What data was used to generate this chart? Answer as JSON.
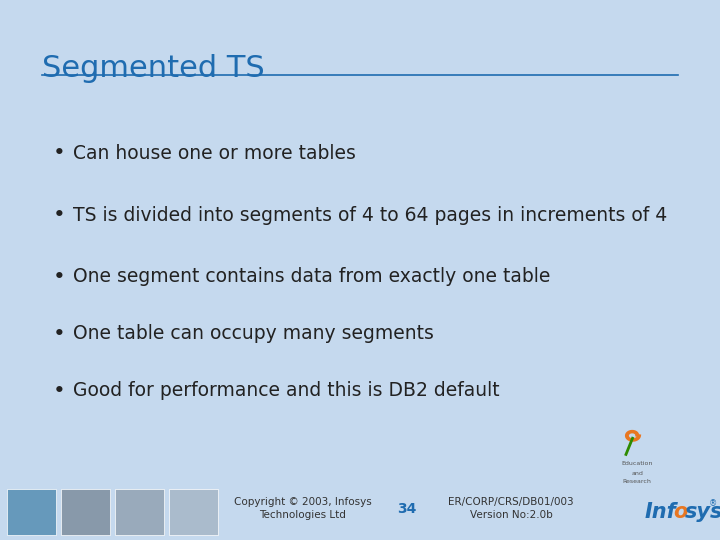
{
  "title": "Segmented TS",
  "title_color": "#1F6CB0",
  "title_fontsize": 22,
  "bg_color": "#DDE9F5",
  "slide_bg": "#C5D9EE",
  "content_bg": "#E8F1FA",
  "bullet_points": [
    "Can house one or more tables",
    "TS is divided into segments of 4 to 64 pages in increments of 4",
    "One segment contains data from exactly one table",
    "One table can occupy many segments",
    "Good for performance and this is DB2 default"
  ],
  "bullet_color": "#222222",
  "bullet_fontsize": 13.5,
  "footer_text_left": "Copyright © 2003, Infosys\nTechnologies Ltd",
  "footer_number": "34",
  "footer_text_right": "ER/CORP/CRS/DB01/003\nVersion No:2.0b",
  "footer_color": "#333333",
  "footer_number_color": "#1F6CB0",
  "footer_bg": "#DDE9F5",
  "infosys_color": "#1F6CB0",
  "infosys_orange": "#E87722"
}
